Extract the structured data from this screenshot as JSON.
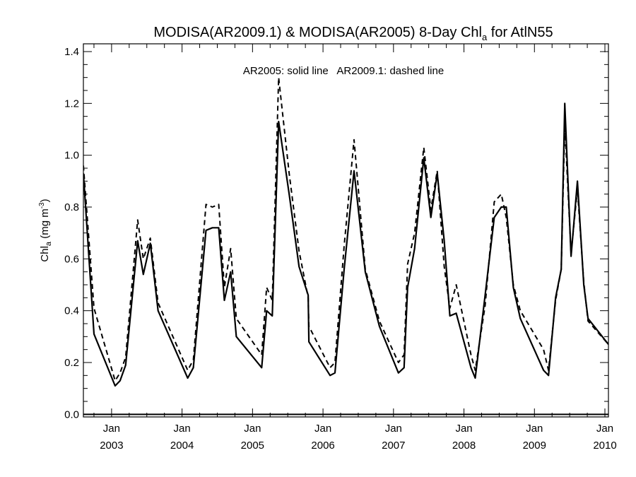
{
  "chart_data": {
    "type": "line",
    "title": {
      "main": "MODISA(AR2009.1) & MODISA(AR2005) 8-Day Chl",
      "sub": "a",
      "tail": " for AtlN55"
    },
    "ylabel": {
      "main": "Chl",
      "sub": "a",
      "unit": " (mg m",
      "sup": "-3",
      "close": ")"
    },
    "annotation": "AR2005: solid line   AR2009.1: dashed line",
    "x_range": [
      2002.6,
      2010.05
    ],
    "ylim": [
      -0.01,
      1.43
    ],
    "yticks": [
      "0.0",
      "0.2",
      "0.4",
      "0.6",
      "0.8",
      "1.0",
      "1.2",
      "1.4"
    ],
    "xticks": [
      {
        "month": "Jan",
        "year": "2003",
        "x": 2003.0
      },
      {
        "month": "Jan",
        "year": "2004",
        "x": 2004.0
      },
      {
        "month": "Jan",
        "year": "2005",
        "x": 2005.0
      },
      {
        "month": "Jan",
        "year": "2006",
        "x": 2006.0
      },
      {
        "month": "Jan",
        "year": "2007",
        "x": 2007.0
      },
      {
        "month": "Jan",
        "year": "2008",
        "x": 2008.0
      },
      {
        "month": "Jan",
        "year": "2009",
        "x": 2009.0
      },
      {
        "month": "Jan",
        "year": "2010",
        "x": 2010.0
      }
    ],
    "series": [
      {
        "style": "solid",
        "points": [
          [
            2002.6,
            0.93
          ],
          [
            2002.75,
            0.31
          ],
          [
            2003.05,
            0.11
          ],
          [
            2003.12,
            0.13
          ],
          [
            2003.2,
            0.19
          ],
          [
            2003.37,
            0.67
          ],
          [
            2003.45,
            0.54
          ],
          [
            2003.55,
            0.66
          ],
          [
            2003.66,
            0.4
          ],
          [
            2004.08,
            0.14
          ],
          [
            2004.16,
            0.18
          ],
          [
            2004.34,
            0.71
          ],
          [
            2004.43,
            0.72
          ],
          [
            2004.52,
            0.72
          ],
          [
            2004.6,
            0.44
          ],
          [
            2004.69,
            0.55
          ],
          [
            2004.77,
            0.3
          ],
          [
            2005.13,
            0.18
          ],
          [
            2005.2,
            0.4
          ],
          [
            2005.28,
            0.38
          ],
          [
            2005.37,
            1.13
          ],
          [
            2005.52,
            0.85
          ],
          [
            2005.66,
            0.57
          ],
          [
            2005.79,
            0.46
          ],
          [
            2005.8,
            0.28
          ],
          [
            2006.1,
            0.15
          ],
          [
            2006.17,
            0.16
          ],
          [
            2006.3,
            0.56
          ],
          [
            2006.44,
            0.94
          ],
          [
            2006.6,
            0.55
          ],
          [
            2006.8,
            0.34
          ],
          [
            2007.07,
            0.16
          ],
          [
            2007.15,
            0.18
          ],
          [
            2007.2,
            0.49
          ],
          [
            2007.3,
            0.64
          ],
          [
            2007.43,
            0.99
          ],
          [
            2007.53,
            0.76
          ],
          [
            2007.62,
            0.93
          ],
          [
            2007.72,
            0.67
          ],
          [
            2007.8,
            0.38
          ],
          [
            2007.89,
            0.39
          ],
          [
            2008.1,
            0.18
          ],
          [
            2008.16,
            0.14
          ],
          [
            2008.3,
            0.46
          ],
          [
            2008.43,
            0.76
          ],
          [
            2008.53,
            0.8
          ],
          [
            2008.6,
            0.8
          ],
          [
            2008.7,
            0.49
          ],
          [
            2008.8,
            0.37
          ],
          [
            2009.13,
            0.17
          ],
          [
            2009.2,
            0.15
          ],
          [
            2009.3,
            0.45
          ],
          [
            2009.38,
            0.56
          ],
          [
            2009.43,
            1.2
          ],
          [
            2009.52,
            0.61
          ],
          [
            2009.61,
            0.9
          ],
          [
            2009.7,
            0.5
          ],
          [
            2009.76,
            0.37
          ],
          [
            2010.05,
            0.27
          ]
        ]
      },
      {
        "style": "dashed",
        "points": [
          [
            2002.6,
            0.96
          ],
          [
            2002.75,
            0.41
          ],
          [
            2003.05,
            0.13
          ],
          [
            2003.12,
            0.16
          ],
          [
            2003.2,
            0.22
          ],
          [
            2003.37,
            0.75
          ],
          [
            2003.45,
            0.6
          ],
          [
            2003.55,
            0.68
          ],
          [
            2003.66,
            0.43
          ],
          [
            2004.08,
            0.17
          ],
          [
            2004.16,
            0.21
          ],
          [
            2004.34,
            0.81
          ],
          [
            2004.43,
            0.8
          ],
          [
            2004.52,
            0.81
          ],
          [
            2004.6,
            0.49
          ],
          [
            2004.69,
            0.64
          ],
          [
            2004.77,
            0.37
          ],
          [
            2005.13,
            0.23
          ],
          [
            2005.2,
            0.49
          ],
          [
            2005.28,
            0.44
          ],
          [
            2005.37,
            1.3
          ],
          [
            2005.52,
            0.93
          ],
          [
            2005.66,
            0.63
          ],
          [
            2005.79,
            0.45
          ],
          [
            2005.8,
            0.34
          ],
          [
            2006.1,
            0.18
          ],
          [
            2006.17,
            0.2
          ],
          [
            2006.3,
            0.65
          ],
          [
            2006.44,
            1.06
          ],
          [
            2006.6,
            0.56
          ],
          [
            2006.8,
            0.36
          ],
          [
            2007.07,
            0.2
          ],
          [
            2007.15,
            0.23
          ],
          [
            2007.2,
            0.58
          ],
          [
            2007.3,
            0.7
          ],
          [
            2007.43,
            1.03
          ],
          [
            2007.53,
            0.79
          ],
          [
            2007.62,
            0.94
          ],
          [
            2007.72,
            0.57
          ],
          [
            2007.8,
            0.41
          ],
          [
            2007.89,
            0.5
          ],
          [
            2008.1,
            0.23
          ],
          [
            2008.16,
            0.17
          ],
          [
            2008.3,
            0.42
          ],
          [
            2008.43,
            0.82
          ],
          [
            2008.53,
            0.85
          ],
          [
            2008.6,
            0.76
          ],
          [
            2008.7,
            0.5
          ],
          [
            2008.8,
            0.4
          ],
          [
            2009.13,
            0.25
          ],
          [
            2009.2,
            0.17
          ],
          [
            2009.3,
            0.44
          ],
          [
            2009.38,
            0.56
          ],
          [
            2009.43,
            1.12
          ],
          [
            2009.52,
            0.62
          ],
          [
            2009.61,
            0.87
          ],
          [
            2009.7,
            0.51
          ],
          [
            2009.76,
            0.36
          ],
          [
            2010.05,
            0.27
          ]
        ]
      }
    ]
  }
}
